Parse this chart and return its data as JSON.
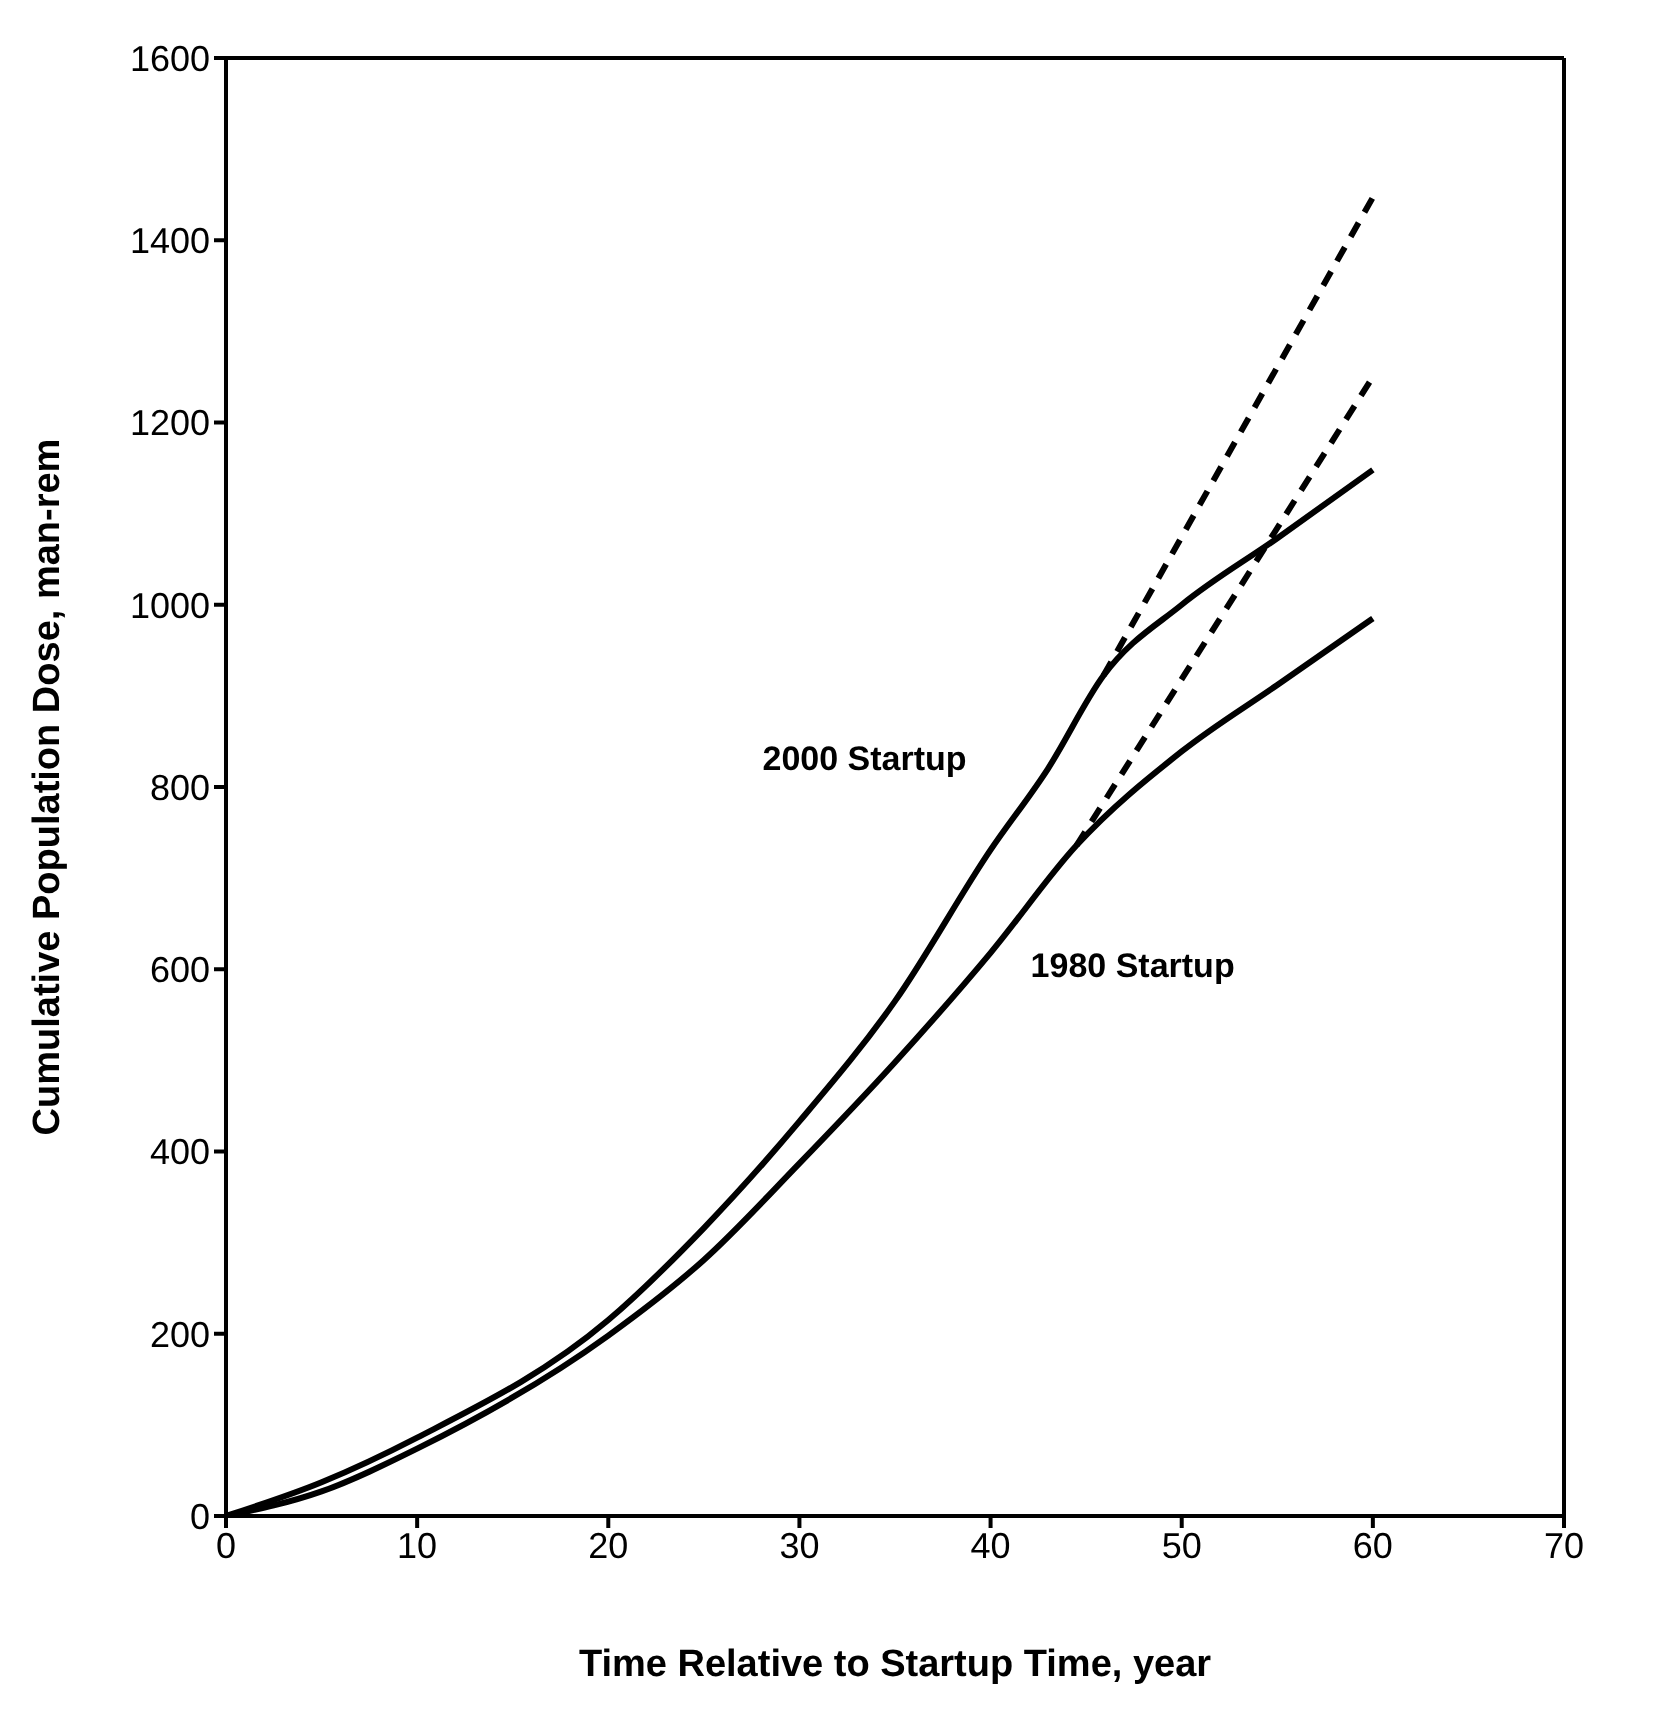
{
  "chart_data": {
    "type": "line",
    "xlabel": "Time Relative to Startup Time, year",
    "ylabel": "Cumulative Population Dose, man-rem",
    "xlim": [
      0,
      70
    ],
    "xticks": [
      0,
      10,
      20,
      30,
      40,
      50,
      60,
      70
    ],
    "ylim": [
      0,
      1600
    ],
    "yticks": [
      0,
      200,
      400,
      600,
      800,
      1000,
      1200,
      1400,
      1600
    ],
    "marker": "none",
    "series": [
      {
        "name": "2000 Startup",
        "color": "#000000",
        "line_style": "solid",
        "x": [
          0,
          5,
          10,
          20,
          25,
          30,
          35,
          40,
          43,
          45.9,
          50,
          55,
          60
        ],
        "values": [
          0,
          37,
          86,
          215,
          316,
          433,
          565,
          731,
          820,
          922,
          1000,
          1073,
          1148
        ]
      },
      {
        "name": "1980 Startup",
        "color": "#000000",
        "line_style": "solid",
        "x": [
          0,
          5,
          10,
          20,
          25,
          30,
          35,
          40,
          44.5,
          50,
          55,
          60
        ],
        "values": [
          0,
          27,
          74,
          198,
          281,
          387,
          498,
          618,
          736,
          839,
          912,
          985
        ]
      },
      {
        "color": "#000000",
        "line_style": "dashed",
        "x": [
          45.9,
          60
        ],
        "values": [
          922,
          1447
        ]
      },
      {
        "color": "#000000",
        "line_style": "dashed",
        "x": [
          44.5,
          60
        ],
        "values": [
          736,
          1250
        ]
      }
    ]
  }
}
